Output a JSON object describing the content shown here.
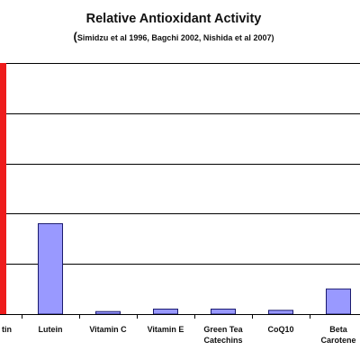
{
  "chart": {
    "title": "Relative Antioxidant Activity",
    "subtitle": "Simidzu et al 1996,  Bagchi 2002, Nishida et al 2007)",
    "subtitle_open": "("
  },
  "chart_data": {
    "type": "bar",
    "title": "Relative Antioxidant Activity",
    "subtitle": "(Simidzu et al 1996,  Bagchi 2002, Nishida et al 2007)",
    "xlabel": "",
    "ylabel": "",
    "grid": true,
    "ylim": [
      0,
      100
    ],
    "categories": [
      {
        "line1": "...tin",
        "line2": "",
        "full": "(cut off: ...tin)"
      },
      {
        "line1": "Lutein",
        "line2": ""
      },
      {
        "line1": "Vitamin C",
        "line2": ""
      },
      {
        "line1": "Vitamin E",
        "line2": ""
      },
      {
        "line1": "Green Tea",
        "line2": "Catechins"
      },
      {
        "line1": "CoQ10",
        "line2": ""
      },
      {
        "line1": "Beta",
        "line2": "Carotene"
      }
    ],
    "values": [
      100,
      36,
      1,
      2,
      2,
      1.5,
      10
    ],
    "colors": {
      "highlight": "#ee1c1c",
      "bar": "#9999ff",
      "bar_stroke": "#1a1a6e",
      "grid": "#000000"
    }
  }
}
